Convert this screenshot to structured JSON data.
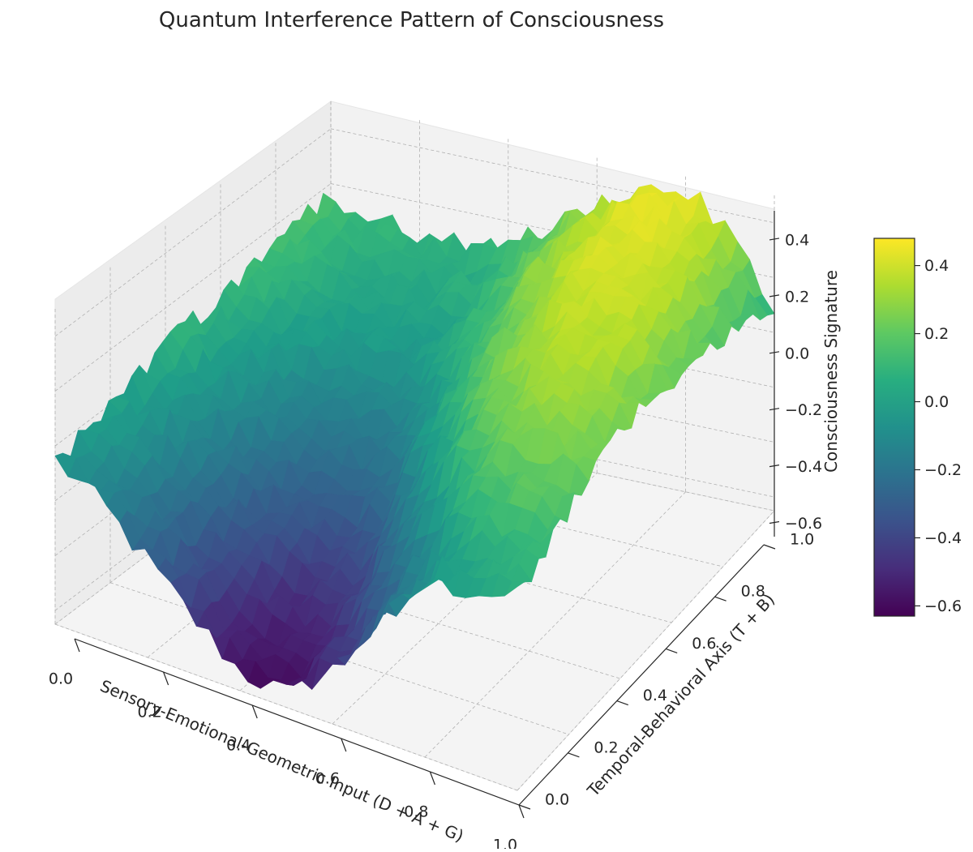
{
  "chart_data": {
    "type": "surface3d",
    "title": "Quantum Interference Pattern of Consciousness",
    "xlabel": "Sensory-Emotional-Geometric Input (D + A + G)",
    "ylabel": "Temporal-Behavioral Axis (T + B)",
    "zlabel": "Consciousness Signature",
    "xlim": [
      0,
      1
    ],
    "ylim": [
      0,
      1
    ],
    "zlim": [
      -0.65,
      0.5
    ],
    "x_ticks": [
      "0.0",
      "0.2",
      "0.4",
      "0.6",
      "0.8",
      "1.0"
    ],
    "y_ticks": [
      "0.0",
      "0.2",
      "0.4",
      "0.6",
      "0.8",
      "1.0"
    ],
    "z_ticks": [
      "−0.6",
      "−0.4",
      "−0.2",
      "0.0",
      "0.2",
      "0.4"
    ],
    "z_tick_values": [
      -0.6,
      -0.4,
      -0.2,
      0.0,
      0.2,
      0.4
    ],
    "colormap": "viridis",
    "colorbar": {
      "ticks": [
        "−0.6",
        "−0.4",
        "−0.2",
        "0.0",
        "0.2",
        "0.4"
      ],
      "tick_values": [
        -0.6,
        -0.4,
        -0.2,
        0.0,
        0.2,
        0.4
      ],
      "range": [
        -0.63,
        0.48
      ]
    },
    "surface": {
      "x": [
        0.0,
        0.1,
        0.2,
        0.3,
        0.4,
        0.5,
        0.6,
        0.7,
        0.8,
        0.9,
        1.0
      ],
      "y": [
        0.0,
        0.1,
        0.2,
        0.3,
        0.4,
        0.5,
        0.6,
        0.7,
        0.8,
        0.9,
        1.0
      ],
      "z": [
        [
          -0.05,
          -0.15,
          -0.3,
          -0.45,
          -0.58,
          -0.6,
          -0.45,
          -0.22,
          -0.02,
          0.02,
          0.05
        ],
        [
          -0.03,
          -0.12,
          -0.28,
          -0.42,
          -0.55,
          -0.55,
          -0.4,
          -0.18,
          0.0,
          0.08,
          0.1
        ],
        [
          -0.01,
          -0.1,
          -0.25,
          -0.38,
          -0.48,
          -0.45,
          -0.28,
          -0.05,
          0.12,
          0.18,
          0.16
        ],
        [
          0.02,
          -0.08,
          -0.2,
          -0.32,
          -0.4,
          -0.33,
          -0.12,
          0.1,
          0.22,
          0.26,
          0.22
        ],
        [
          0.05,
          -0.05,
          -0.16,
          -0.25,
          -0.3,
          -0.2,
          0.02,
          0.2,
          0.3,
          0.3,
          0.24
        ],
        [
          0.08,
          -0.02,
          -0.12,
          -0.18,
          -0.2,
          -0.08,
          0.12,
          0.28,
          0.34,
          0.33,
          0.24
        ],
        [
          0.1,
          0.01,
          -0.06,
          -0.1,
          -0.1,
          0.02,
          0.2,
          0.34,
          0.38,
          0.35,
          0.22
        ],
        [
          0.12,
          0.04,
          -0.02,
          -0.04,
          -0.02,
          0.1,
          0.26,
          0.37,
          0.4,
          0.36,
          0.2
        ],
        [
          0.14,
          0.06,
          0.02,
          0.0,
          0.03,
          0.15,
          0.3,
          0.4,
          0.42,
          0.36,
          0.17
        ],
        [
          0.15,
          0.08,
          0.05,
          0.04,
          0.08,
          0.19,
          0.32,
          0.42,
          0.44,
          0.35,
          0.12
        ],
        [
          0.15,
          0.1,
          0.08,
          0.07,
          0.11,
          0.21,
          0.33,
          0.42,
          0.45,
          0.33,
          0.07
        ]
      ]
    }
  }
}
